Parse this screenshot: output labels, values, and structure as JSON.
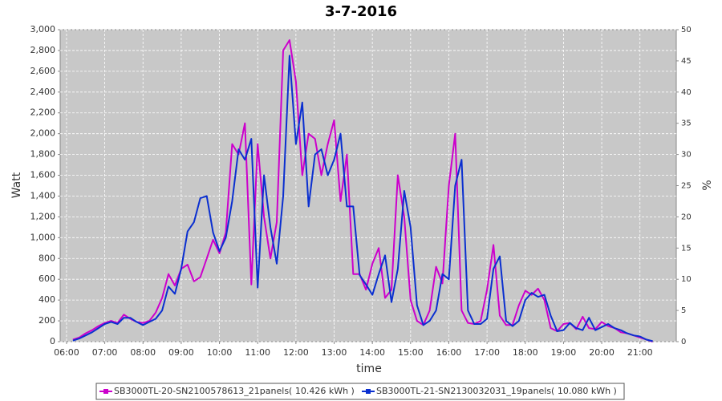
{
  "chart_data": {
    "type": "line",
    "title": "3-7-2016",
    "x_label": "time",
    "y_label": "Watt",
    "y2_label": "%",
    "x": [
      "06:10",
      "06:20",
      "06:30",
      "06:40",
      "06:50",
      "07:00",
      "07:10",
      "07:20",
      "07:30",
      "07:40",
      "07:50",
      "08:00",
      "08:10",
      "08:20",
      "08:30",
      "08:40",
      "08:50",
      "09:00",
      "09:10",
      "09:20",
      "09:30",
      "09:40",
      "09:50",
      "10:00",
      "10:10",
      "10:20",
      "10:30",
      "10:40",
      "10:50",
      "11:00",
      "11:10",
      "11:20",
      "11:30",
      "11:40",
      "11:50",
      "12:00",
      "12:10",
      "12:20",
      "12:30",
      "12:40",
      "12:50",
      "13:00",
      "13:10",
      "13:20",
      "13:30",
      "13:40",
      "13:50",
      "14:00",
      "14:10",
      "14:20",
      "14:30",
      "14:40",
      "14:50",
      "15:00",
      "15:10",
      "15:20",
      "15:30",
      "15:40",
      "15:50",
      "16:00",
      "16:10",
      "16:20",
      "16:30",
      "16:40",
      "16:50",
      "17:00",
      "17:10",
      "17:20",
      "17:30",
      "17:40",
      "17:50",
      "18:00",
      "18:10",
      "18:20",
      "18:30",
      "18:40",
      "18:50",
      "19:00",
      "19:10",
      "19:20",
      "19:30",
      "19:40",
      "19:50",
      "20:00",
      "20:10",
      "20:20",
      "20:30",
      "20:40",
      "20:50",
      "21:00",
      "21:10",
      "21:20"
    ],
    "series": [
      {
        "name": "SB3000TL-20-SN2100578613_21panels( 10.426 kWh )",
        "color": "#cc00cc",
        "values": [
          20,
          40,
          80,
          110,
          150,
          180,
          200,
          180,
          260,
          220,
          190,
          180,
          200,
          280,
          420,
          650,
          540,
          700,
          740,
          580,
          620,
          800,
          980,
          850,
          1050,
          1900,
          1800,
          2100,
          550,
          1900,
          1200,
          800,
          1150,
          2800,
          2900,
          2500,
          1600,
          2000,
          1950,
          1600,
          1900,
          2130,
          1350,
          1800,
          650,
          650,
          500,
          750,
          900,
          420,
          500,
          1600,
          1200,
          400,
          200,
          160,
          300,
          720,
          560,
          1500,
          2000,
          300,
          180,
          170,
          200,
          500,
          930,
          250,
          160,
          160,
          350,
          490,
          450,
          510,
          400,
          130,
          100,
          170,
          180,
          120,
          240,
          130,
          120,
          190,
          150,
          130,
          90,
          80,
          60,
          40,
          20,
          0
        ]
      },
      {
        "name": "SB3000TL-21-SN2130032031_19panels( 10.080 kWh )",
        "color": "#0a2fd0",
        "values": [
          10,
          30,
          60,
          90,
          130,
          170,
          190,
          170,
          230,
          230,
          190,
          160,
          190,
          220,
          300,
          530,
          460,
          700,
          1060,
          1150,
          1380,
          1400,
          1050,
          870,
          1000,
          1350,
          1850,
          1750,
          1950,
          520,
          1600,
          1100,
          750,
          1400,
          2750,
          1900,
          2300,
          1300,
          1800,
          1850,
          1600,
          1750,
          2000,
          1300,
          1300,
          640,
          550,
          450,
          650,
          830,
          380,
          700,
          1450,
          1100,
          350,
          160,
          200,
          300,
          650,
          600,
          1500,
          1750,
          300,
          170,
          170,
          220,
          700,
          820,
          200,
          150,
          200,
          400,
          470,
          430,
          450,
          250,
          100,
          110,
          180,
          130,
          110,
          230,
          110,
          140,
          170,
          130,
          110,
          80,
          60,
          50,
          20,
          5
        ]
      }
    ],
    "xlim": [
      "05:50",
      "21:57"
    ],
    "xticks": [
      "06:00",
      "07:00",
      "08:00",
      "09:00",
      "10:00",
      "11:00",
      "12:00",
      "13:00",
      "14:00",
      "15:00",
      "16:00",
      "17:00",
      "18:00",
      "19:00",
      "20:00",
      "21:00"
    ],
    "ylim": [
      0,
      3000
    ],
    "yticks": [
      0,
      200,
      400,
      600,
      800,
      {
        "value": 1000,
        "label": "1,000"
      },
      {
        "value": 1200,
        "label": "1,200"
      },
      {
        "value": 1400,
        "label": "1,400"
      },
      {
        "value": 1600,
        "label": "1,600"
      },
      {
        "value": 1800,
        "label": "1,800"
      },
      {
        "value": 2000,
        "label": "2,000"
      },
      {
        "value": 2200,
        "label": "2,200"
      },
      {
        "value": 2400,
        "label": "2,400"
      },
      {
        "value": 2600,
        "label": "2,600"
      },
      {
        "value": 2800,
        "label": "2,800"
      },
      {
        "value": 3000,
        "label": "3,000"
      }
    ],
    "y2lim": [
      0,
      50
    ],
    "y2ticks": [
      0,
      5,
      10,
      15,
      20,
      25,
      30,
      35,
      40,
      45,
      50
    ],
    "grid": true,
    "legend": "bottom"
  }
}
